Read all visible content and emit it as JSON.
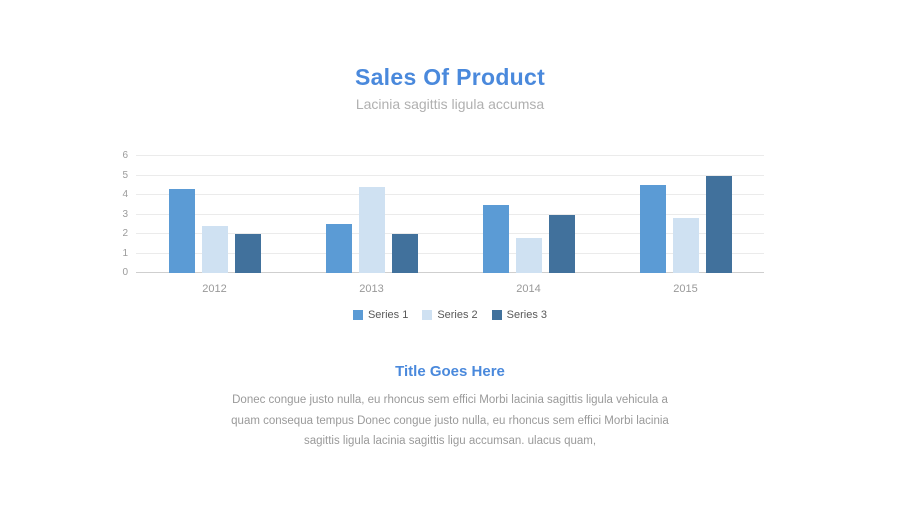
{
  "header": {
    "title": "Sales Of Product",
    "subtitle": "Lacinia sagittis ligula accumsa"
  },
  "chart_data": {
    "type": "bar",
    "title": "Sales Of Product",
    "categories": [
      "2012",
      "2013",
      "2014",
      "2015"
    ],
    "series": [
      {
        "name": "Series 1",
        "color": "#5b9bd5",
        "values": [
          4.3,
          2.5,
          3.5,
          4.5
        ]
      },
      {
        "name": "Series 2",
        "color": "#cfe1f2",
        "values": [
          2.4,
          4.4,
          1.8,
          2.8
        ]
      },
      {
        "name": "Series 3",
        "color": "#41719c",
        "values": [
          2.0,
          2.0,
          3.0,
          5.0
        ]
      }
    ],
    "xlabel": "",
    "ylabel": "",
    "ylim": [
      0,
      6
    ],
    "yticks": [
      6,
      5,
      4,
      3,
      2,
      1,
      0
    ],
    "grid": true,
    "legend_position": "bottom"
  },
  "body": {
    "section_title": "Title Goes Here",
    "paragraph": "Donec congue justo nulla, eu rhoncus sem effici Morbi lacinia sagittis ligula vehicula a quam consequa tempus Donec congue justo nulla, eu rhoncus sem effici Morbi lacinia sagittis ligula lacinia sagittis ligu accumsan. ulacus quam,"
  }
}
